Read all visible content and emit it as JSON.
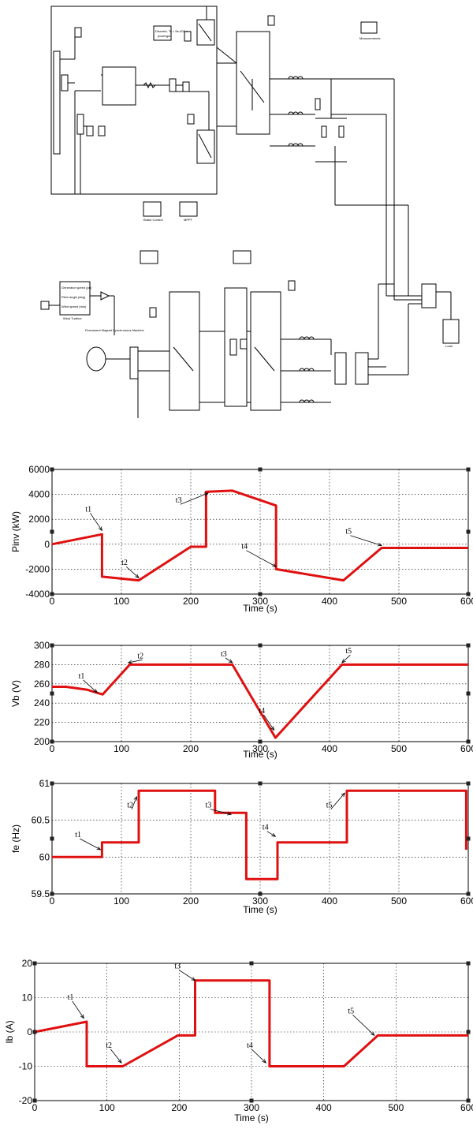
{
  "diagram": {
    "scopes": [
      "Scope",
      "Vb",
      "fe",
      "Ib",
      "Measurements",
      "Brake Control",
      "MPPT",
      "Wind Turbine"
    ],
    "notes": [
      "Discrete, Ts = 5e-005 s.",
      "powergui",
      "Permanent Magnet Synchronous Machine",
      "Generator speed (pu)",
      "Pitch angle (deg)",
      "Wind speed (m/s)"
    ],
    "blocks": [
      "SPVS",
      "SPVS",
      "PBC",
      "Load",
      "DFA"
    ]
  },
  "chart_data": [
    {
      "type": "line",
      "ylabel": "Pinv (kW)",
      "xlabel": "Time (s)",
      "xlim": [
        0,
        600
      ],
      "ylim": [
        -4000,
        6000
      ],
      "xticks": [
        "0",
        "100",
        "200",
        "300",
        "400",
        "500",
        "600"
      ],
      "yticks": [
        "-4000",
        "-2000",
        "0",
        "2000",
        "4000",
        "6000"
      ],
      "grid": true,
      "color": "#e01010",
      "series": [
        {
          "points": [
            [
              0,
              0
            ],
            [
              72,
              800
            ],
            [
              72,
              -2600
            ],
            [
              125,
              -2900
            ],
            [
              200,
              -200
            ],
            [
              222,
              -200
            ],
            [
              222,
              4200
            ],
            [
              260,
              4300
            ],
            [
              323,
              3100
            ],
            [
              323,
              -2000
            ],
            [
              420,
              -2900
            ],
            [
              475,
              -300
            ],
            [
              600,
              -300
            ]
          ]
        }
      ],
      "annotations": [
        {
          "label": "t1",
          "x": 55,
          "y": 2500,
          "ax": 72,
          "ay": 1100
        },
        {
          "label": "t2",
          "x": 107,
          "y": -1800,
          "ax": 125,
          "ay": -2700
        },
        {
          "label": "t3",
          "x": 185,
          "y": 3200,
          "ax": 225,
          "ay": 4100
        },
        {
          "label": "t4",
          "x": 280,
          "y": -500,
          "ax": 323,
          "ay": -1800
        },
        {
          "label": "t5",
          "x": 430,
          "y": 700,
          "ax": 475,
          "ay": -100
        }
      ]
    },
    {
      "type": "line",
      "ylabel": "Vb (V)",
      "xlabel": "Time (s)",
      "xlim": [
        0,
        600
      ],
      "ylim": [
        200,
        300
      ],
      "xticks": [
        "0",
        "100",
        "200",
        "300",
        "400",
        "500",
        "600"
      ],
      "yticks": [
        "200",
        "220",
        "240",
        "260",
        "280",
        "300"
      ],
      "grid": true,
      "color": "#e01010",
      "series": [
        {
          "points": [
            [
              0,
              257
            ],
            [
              20,
              257
            ],
            [
              50,
              254
            ],
            [
              73,
              249
            ],
            [
              112,
              280
            ],
            [
              260,
              280
            ],
            [
              322,
              204
            ],
            [
              418,
              280
            ],
            [
              600,
              280
            ]
          ]
        }
      ],
      "annotations": [
        {
          "label": "t1",
          "x": 45,
          "y": 264,
          "ax": 65,
          "ay": 251
        },
        {
          "label": "t2",
          "x": 130,
          "y": 285,
          "ax": 110,
          "ay": 282
        },
        {
          "label": "t3",
          "x": 250,
          "y": 287,
          "ax": 260,
          "ay": 282
        },
        {
          "label": "t4",
          "x": 305,
          "y": 228,
          "ax": 320,
          "ay": 212
        },
        {
          "label": "t5",
          "x": 430,
          "y": 290,
          "ax": 418,
          "ay": 282
        }
      ]
    },
    {
      "type": "line",
      "ylabel": "fe (Hz)",
      "xlabel": "Time (s)",
      "xlim": [
        0,
        600
      ],
      "ylim": [
        59.5,
        61
      ],
      "xticks": [
        "0",
        "100",
        "200",
        "300",
        "400",
        "500",
        "600"
      ],
      "yticks": [
        "59.5",
        "60",
        "60.5",
        "61"
      ],
      "grid": true,
      "color": "#e01010",
      "series": [
        {
          "points": [
            [
              0,
              60
            ],
            [
              72,
              60
            ],
            [
              72,
              60.2
            ],
            [
              125,
              60.2
            ],
            [
              125,
              60.9
            ],
            [
              235,
              60.9
            ],
            [
              235,
              60.6
            ],
            [
              280,
              60.6
            ],
            [
              280,
              59.7
            ],
            [
              325,
              59.7
            ],
            [
              325,
              60.2
            ],
            [
              425,
              60.2
            ],
            [
              425,
              60.9
            ],
            [
              597,
              60.9
            ],
            [
              597,
              60.1
            ]
          ]
        }
      ],
      "annotations": [
        {
          "label": "t1",
          "x": 40,
          "y": 60.25,
          "ax": 70,
          "ay": 60.1
        },
        {
          "label": "t2",
          "x": 115,
          "y": 60.65,
          "ax": 122,
          "ay": 60.82
        },
        {
          "label": "t3",
          "x": 228,
          "y": 60.65,
          "ax": 258,
          "ay": 60.58
        },
        {
          "label": "t4",
          "x": 310,
          "y": 60.35,
          "ax": 322,
          "ay": 60.28
        },
        {
          "label": "t5",
          "x": 402,
          "y": 60.65,
          "ax": 422,
          "ay": 60.87
        }
      ]
    },
    {
      "type": "line",
      "ylabel": "Ib (A)",
      "xlabel": "Time (s)",
      "xlim": [
        0,
        600
      ],
      "ylim": [
        -20,
        20
      ],
      "xticks": [
        "0",
        "100",
        "200",
        "300",
        "400",
        "500",
        "600"
      ],
      "yticks": [
        "-20",
        "-10",
        "0",
        "10",
        "20"
      ],
      "grid": true,
      "color": "#e01010",
      "series": [
        {
          "points": [
            [
              0,
              0
            ],
            [
              72,
              3
            ],
            [
              72,
              -10
            ],
            [
              122,
              -10
            ],
            [
              198,
              -1
            ],
            [
              222,
              -1
            ],
            [
              222,
              15
            ],
            [
              325,
              15
            ],
            [
              325,
              -10
            ],
            [
              428,
              -10
            ],
            [
              475,
              -1
            ],
            [
              600,
              -1
            ]
          ]
        }
      ],
      "annotations": [
        {
          "label": "t1",
          "x": 52,
          "y": 9,
          "ax": 68,
          "ay": 4
        },
        {
          "label": "t2",
          "x": 105,
          "y": -5,
          "ax": 120,
          "ay": -9
        },
        {
          "label": "t3",
          "x": 200,
          "y": 18,
          "ax": 222,
          "ay": 15
        },
        {
          "label": "t4",
          "x": 300,
          "y": -5,
          "ax": 320,
          "ay": -9
        },
        {
          "label": "t5",
          "x": 440,
          "y": 5,
          "ax": 470,
          "ay": -1
        }
      ]
    }
  ]
}
